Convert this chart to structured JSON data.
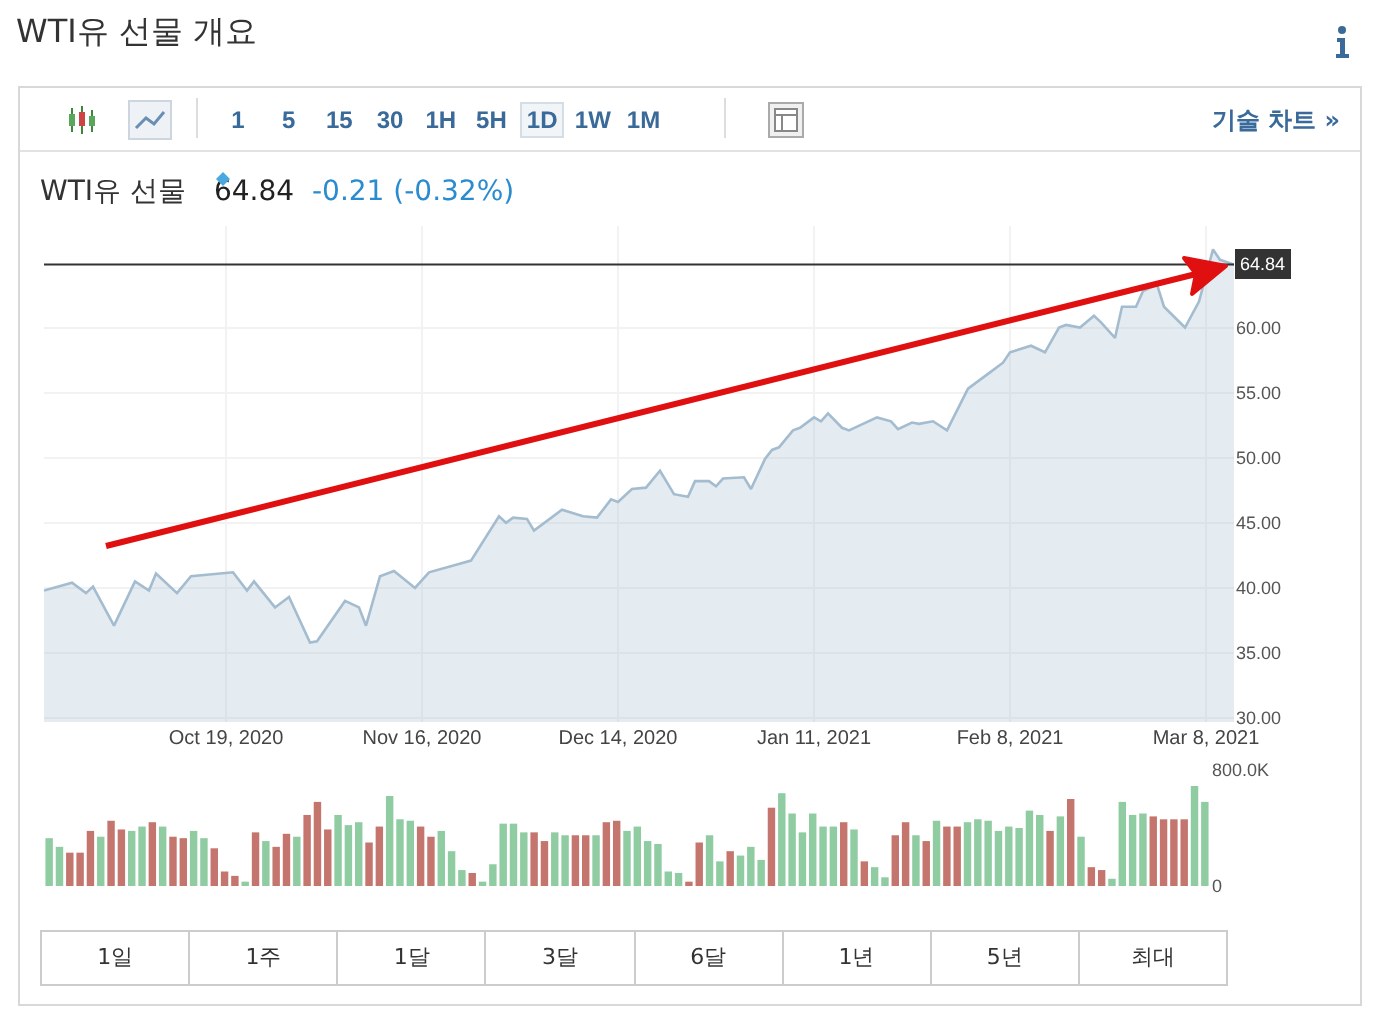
{
  "chart_data": [
    {
      "type": "other",
      "title": "WTI유 선물 개요",
      "annotations": [
        "1 5 15 30 1H 5H 1D 1W 1M",
        "기술 차트 »"
      ]
    },
    {
      "type": "area",
      "title": "WTI유 선물",
      "annotations": [
        "64.84",
        "-0.21 (-0.32%)"
      ],
      "x": [
        "2020-09-23",
        "2020-09-27",
        "2020-09-29",
        "2020-09-30",
        "2020-10-03",
        "2020-10-06",
        "2020-10-08",
        "2020-10-09",
        "2020-10-12",
        "2020-10-14",
        "2020-10-20",
        "2020-10-22",
        "2020-10-23",
        "2020-10-26",
        "2020-10-28",
        "2020-10-31",
        "2020-11-01",
        "2020-11-05",
        "2020-11-07",
        "2020-11-08",
        "2020-11-10",
        "2020-11-12",
        "2020-11-15",
        "2020-11-17",
        "2020-11-21",
        "2020-11-23",
        "2020-11-27",
        "2020-11-28",
        "2020-11-29",
        "2020-12-01",
        "2020-12-02",
        "2020-12-06",
        "2020-12-09",
        "2020-12-11",
        "2020-12-13",
        "2020-12-14",
        "2020-12-16",
        "2020-12-18",
        "2020-12-20",
        "2020-12-22",
        "2020-12-24",
        "2020-12-25",
        "2020-12-27",
        "2020-12-28",
        "2020-12-29",
        "2021-01-01",
        "2021-01-02",
        "2021-01-04",
        "2021-01-05",
        "2021-01-06",
        "2021-01-08",
        "2021-01-09",
        "2021-01-11",
        "2021-01-12",
        "2021-01-13",
        "2021-01-15",
        "2021-01-16",
        "2021-01-18",
        "2021-01-20",
        "2021-01-22",
        "2021-01-23",
        "2021-01-25",
        "2021-01-26",
        "2021-01-28",
        "2021-01-30",
        "2021-02-02",
        "2021-02-05",
        "2021-02-07",
        "2021-02-08",
        "2021-02-11",
        "2021-02-13",
        "2021-02-15",
        "2021-02-16",
        "2021-02-18",
        "2021-02-20",
        "2021-02-21",
        "2021-02-23",
        "2021-02-24",
        "2021-02-26",
        "2021-02-27",
        "2021-03-01",
        "2021-03-02",
        "2021-03-05",
        "2021-03-07",
        "2021-03-09",
        "2021-03-10",
        "2021-03-12"
      ],
      "series": [
        {
          "color": "#a4bccf",
          "values": [
            39.8,
            40.4,
            39.6,
            40.1,
            37.1,
            40.5,
            39.8,
            41.1,
            39.6,
            40.9,
            41.2,
            39.8,
            40.5,
            38.5,
            39.3,
            35.8,
            35.9,
            39.0,
            38.5,
            37.1,
            40.9,
            41.3,
            40.0,
            41.2,
            41.8,
            42.1,
            45.5,
            45.0,
            45.4,
            45.3,
            44.4,
            46.0,
            45.5,
            45.4,
            46.8,
            46.6,
            47.6,
            47.7,
            49.0,
            47.2,
            47.0,
            48.2,
            48.2,
            47.8,
            48.4,
            48.5,
            47.6,
            49.9,
            50.6,
            50.8,
            52.1,
            52.3,
            53.1,
            52.8,
            53.4,
            52.3,
            52.1,
            52.6,
            53.1,
            52.8,
            52.2,
            52.7,
            52.6,
            52.8,
            52.1,
            55.3,
            56.5,
            57.3,
            58.1,
            58.6,
            58.1,
            60.0,
            60.2,
            60.0,
            60.9,
            60.4,
            59.2,
            61.6,
            61.6,
            62.8,
            63.3,
            61.6,
            60.0,
            62.0,
            66.0,
            65.2,
            64.84
          ]
        }
      ],
      "xlim": [
        "2020-09-23",
        "2021-03-12"
      ],
      "xticks": [
        {
          "value": "2020-10-19",
          "label": "Oct 19, 2020"
        },
        {
          "value": "2020-11-16",
          "label": "Nov 16, 2020"
        },
        {
          "value": "2020-12-14",
          "label": "Dec 14, 2020"
        },
        {
          "value": "2021-01-11",
          "label": "Jan 11, 2021"
        },
        {
          "value": "2021-02-08",
          "label": "Feb 8, 2021"
        },
        {
          "value": "2021-03-08",
          "label": "Mar 8, 2021"
        }
      ],
      "ylim": [
        29.7,
        67.8
      ],
      "yticks": [
        {
          "value": 30,
          "label": "30.00"
        },
        {
          "value": 35,
          "label": "35.00"
        },
        {
          "value": 40,
          "label": "40.00"
        },
        {
          "value": 45,
          "label": "45.00"
        },
        {
          "value": 50,
          "label": "50.00"
        },
        {
          "value": 55,
          "label": "55.00"
        },
        {
          "value": 60,
          "label": "60.00"
        }
      ],
      "ref_lines": [
        {
          "axis": "y",
          "value": 64.84,
          "label": "64.84",
          "color": "#333333"
        }
      ],
      "grid": true
    },
    {
      "type": "bar",
      "categories": [
        null,
        null,
        null,
        null,
        null,
        null,
        null,
        null,
        null,
        null,
        null,
        null,
        null,
        null,
        null,
        null,
        null,
        null,
        null,
        null,
        null,
        null,
        null,
        null,
        null,
        null,
        null,
        null,
        null,
        null,
        null,
        null,
        null,
        null,
        null,
        null,
        null,
        null,
        null,
        null,
        null,
        null,
        null,
        null,
        null,
        null,
        null,
        null,
        null,
        null,
        null,
        null,
        null,
        null,
        null,
        null,
        null,
        null,
        null,
        null,
        null,
        null,
        null,
        null,
        null,
        null,
        null,
        null,
        null,
        null,
        null,
        null,
        null,
        null,
        null,
        null,
        null,
        null,
        null,
        null,
        null,
        null,
        null,
        null,
        null,
        null,
        null,
        null,
        null,
        null,
        null,
        null,
        null,
        null,
        null,
        null,
        null,
        null,
        null,
        null,
        null,
        null,
        null,
        null,
        null,
        null,
        null,
        null,
        null,
        null,
        null,
        null,
        null
      ],
      "values": [
        330000,
        270000,
        230000,
        230000,
        380000,
        340000,
        450000,
        390000,
        380000,
        410000,
        440000,
        410000,
        340000,
        330000,
        380000,
        330000,
        260000,
        100000,
        70000,
        30000,
        370000,
        310000,
        270000,
        360000,
        340000,
        490000,
        580000,
        390000,
        490000,
        420000,
        440000,
        300000,
        410000,
        620000,
        460000,
        450000,
        410000,
        340000,
        380000,
        240000,
        110000,
        90000,
        30000,
        150000,
        430000,
        430000,
        370000,
        370000,
        310000,
        370000,
        350000,
        350000,
        350000,
        350000,
        440000,
        450000,
        380000,
        410000,
        310000,
        290000,
        100000,
        90000,
        30000,
        300000,
        350000,
        170000,
        240000,
        210000,
        270000,
        180000,
        540000,
        640000,
        500000,
        370000,
        500000,
        410000,
        410000,
        440000,
        390000,
        170000,
        130000,
        60000,
        350000,
        440000,
        350000,
        310000,
        450000,
        410000,
        410000,
        440000,
        460000,
        450000,
        380000,
        410000,
        400000,
        520000,
        490000,
        380000,
        480000,
        600000,
        340000,
        130000,
        110000,
        50000,
        580000,
        490000,
        500000,
        480000,
        460000,
        460000,
        460000,
        690000,
        580000
      ],
      "colors": [
        "#8fcca2",
        "#8fcca2",
        "#c4766e",
        "#c4766e",
        "#c4766e",
        "#8fcca2",
        "#c4766e",
        "#c4766e",
        "#8fcca2",
        "#8fcca2",
        "#c4766e",
        "#8fcca2",
        "#c4766e",
        "#c4766e",
        "#8fcca2",
        "#8fcca2",
        "#c4766e",
        "#c4766e",
        "#c4766e",
        "#8fcca2",
        "#c4766e",
        "#8fcca2",
        "#c4766e",
        "#c4766e",
        "#8fcca2",
        "#c4766e",
        "#c4766e",
        "#c4766e",
        "#8fcca2",
        "#8fcca2",
        "#8fcca2",
        "#c4766e",
        "#c4766e",
        "#8fcca2",
        "#8fcca2",
        "#8fcca2",
        "#c4766e",
        "#c4766e",
        "#8fcca2",
        "#8fcca2",
        "#8fcca2",
        "#c4766e",
        "#8fcca2",
        "#8fcca2",
        "#8fcca2",
        "#8fcca2",
        "#8fcca2",
        "#c4766e",
        "#c4766e",
        "#8fcca2",
        "#8fcca2",
        "#c4766e",
        "#c4766e",
        "#8fcca2",
        "#c4766e",
        "#c4766e",
        "#8fcca2",
        "#8fcca2",
        "#8fcca2",
        "#8fcca2",
        "#8fcca2",
        "#8fcca2",
        "#c4766e",
        "#c4766e",
        "#8fcca2",
        "#8fcca2",
        "#c4766e",
        "#8fcca2",
        "#8fcca2",
        "#8fcca2",
        "#c4766e",
        "#8fcca2",
        "#8fcca2",
        "#8fcca2",
        "#8fcca2",
        "#8fcca2",
        "#8fcca2",
        "#c4766e",
        "#8fcca2",
        "#c4766e",
        "#8fcca2",
        "#8fcca2",
        "#c4766e",
        "#c4766e",
        "#8fcca2",
        "#c4766e",
        "#8fcca2",
        "#c4766e",
        "#c4766e",
        "#8fcca2",
        "#8fcca2",
        "#8fcca2",
        "#8fcca2",
        "#8fcca2",
        "#8fcca2",
        "#8fcca2",
        "#8fcca2",
        "#c4766e",
        "#8fcca2",
        "#c4766e",
        "#8fcca2",
        "#c4766e",
        "#c4766e",
        "#8fcca2",
        "#8fcca2",
        "#8fcca2",
        "#8fcca2",
        "#c4766e",
        "#c4766e",
        "#c4766e",
        "#c4766e",
        "#8fcca2",
        "#8fcca2"
      ],
      "ylim": [
        0,
        800000
      ],
      "yticks": [
        {
          "value": 0,
          "label": "0"
        },
        {
          "value": 800000,
          "label": "800.0K"
        }
      ],
      "tick_labels": "y"
    },
    {
      "type": "other",
      "annotations": [
        "1일",
        "1주",
        "1달",
        "3달",
        "6달",
        "1년",
        "5년",
        "최대"
      ]
    }
  ]
}
